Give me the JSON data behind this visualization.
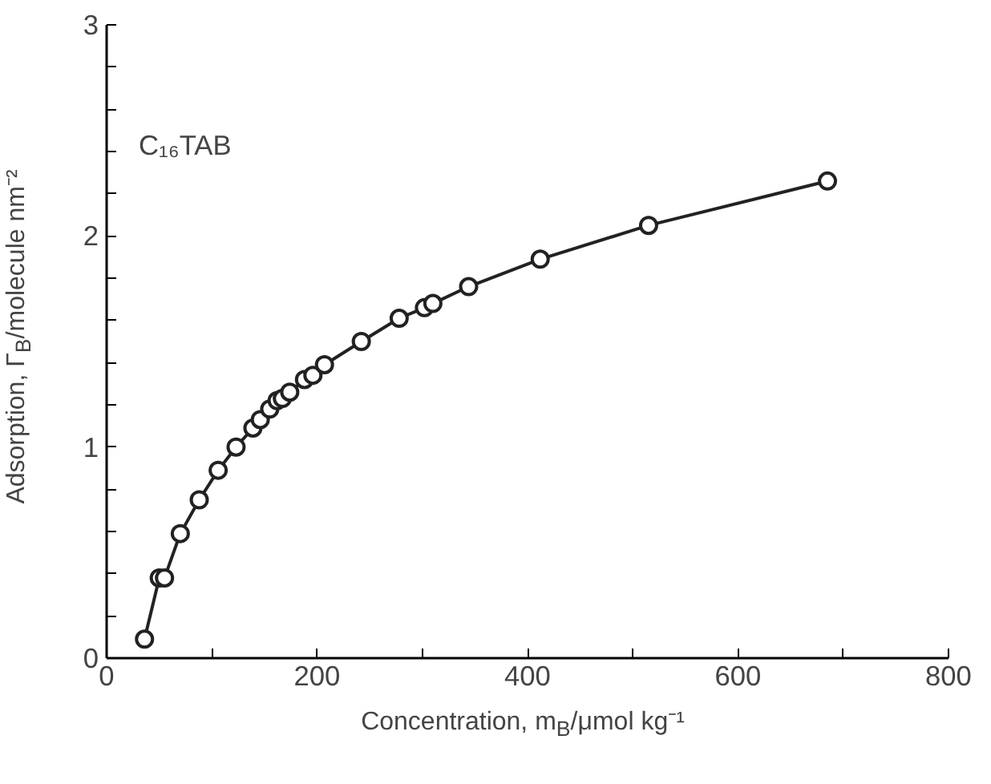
{
  "chart_data": {
    "type": "line",
    "xlabel": "Concentration, m$_{B}$/μmol kg⁻¹",
    "ylabel": "Adsorption, Γ$_{B}$/molecule nm⁻²",
    "annotations": [
      "C₁₆TAB"
    ],
    "x": [
      36,
      50,
      55,
      70,
      88,
      106,
      123,
      139,
      146,
      155,
      162,
      167,
      174,
      188,
      196,
      207,
      242,
      278,
      302,
      310,
      344,
      412,
      515,
      685
    ],
    "series": [
      {
        "color": "#222222",
        "values": [
          0.09,
          0.38,
          0.38,
          0.59,
          0.75,
          0.89,
          1.0,
          1.09,
          1.13,
          1.18,
          1.22,
          1.23,
          1.26,
          1.32,
          1.34,
          1.39,
          1.5,
          1.61,
          1.66,
          1.68,
          1.76,
          1.89,
          2.05,
          2.26
        ]
      }
    ],
    "xlim": [
      0,
      800
    ],
    "ylim": [
      0,
      3
    ],
    "xticks": [
      0,
      {
        "value": 100,
        "label": null
      },
      200,
      {
        "value": 300,
        "label": null
      },
      400,
      {
        "value": 500,
        "label": null
      },
      600,
      {
        "value": 700,
        "label": null
      },
      800
    ],
    "yticks": [
      0,
      {
        "value": 0.2,
        "label": null
      },
      {
        "value": 0.4,
        "label": null
      },
      {
        "value": 0.6,
        "label": null
      },
      {
        "value": 0.8,
        "label": null
      },
      1,
      {
        "value": 1.2,
        "label": null
      },
      {
        "value": 1.4,
        "label": null
      },
      {
        "value": 1.6,
        "label": null
      },
      {
        "value": 1.8,
        "label": null
      },
      2,
      {
        "value": 2.2,
        "label": null
      },
      {
        "value": 2.4,
        "label": null
      },
      {
        "value": 2.6,
        "label": null
      },
      {
        "value": 2.8,
        "label": null
      },
      3
    ],
    "marker": "circle",
    "line_style": "solid",
    "grid": false
  }
}
